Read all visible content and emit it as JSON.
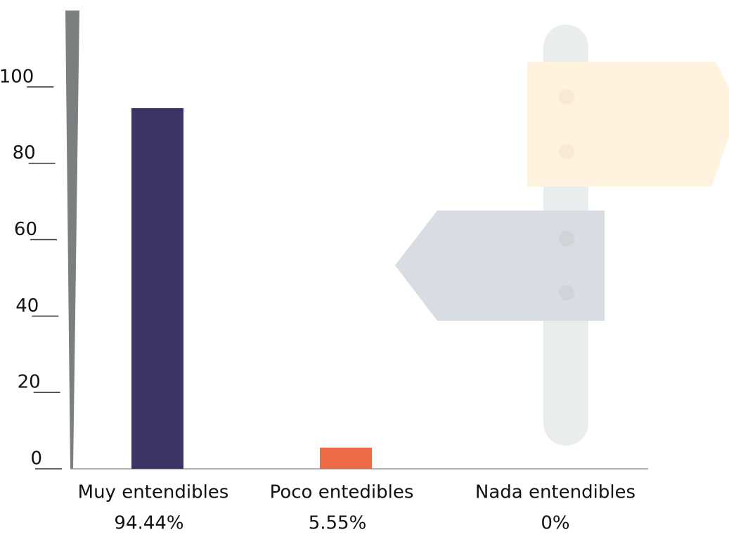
{
  "chart_data": {
    "type": "bar",
    "categories": [
      "Muy entendibles",
      "Poco entedibles",
      "Nada entendibles"
    ],
    "values": [
      94.44,
      5.55,
      0
    ],
    "value_labels": [
      "94.44%",
      "5.55%",
      "0%"
    ],
    "colors": [
      "#3b3567",
      "#ee6a45",
      "#f6d9dc"
    ],
    "ylim": [
      0,
      120
    ],
    "yticks": [
      0,
      20,
      40,
      60,
      80,
      100
    ]
  }
}
